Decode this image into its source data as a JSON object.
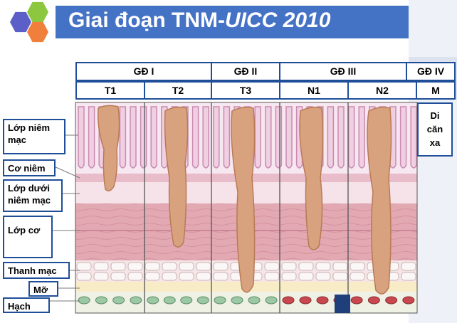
{
  "header": {
    "title_prefix": "Giai đoạn TNM-",
    "title_italic": "UICC 2010"
  },
  "stages": [
    {
      "label": "GĐ I"
    },
    {
      "label": "GĐ II"
    },
    {
      "label": "GĐ III"
    },
    {
      "label": "GĐ IV"
    }
  ],
  "columns": [
    {
      "label": "T1"
    },
    {
      "label": "T2"
    },
    {
      "label": "T3"
    },
    {
      "label": "N1"
    },
    {
      "label": "N2"
    },
    {
      "label": "M"
    }
  ],
  "layers": [
    {
      "label": "Lớp niêm mạc"
    },
    {
      "label": "Cơ niêm"
    },
    {
      "label": "Lớp dưới niêm mạc"
    },
    {
      "label": "Lớp cơ"
    },
    {
      "label": "Thanh mạc"
    },
    {
      "label": "Mỡ"
    },
    {
      "label": "Hạch"
    }
  ],
  "metastasis": {
    "line1": "Di",
    "line2": "căn",
    "line3": "xa"
  },
  "colors": {
    "header_blue": "#4472c4",
    "border_blue": "#1f4e99",
    "tumor": "#d9a27e",
    "mucosa": "#f3d9e8",
    "muscle": "#e0a3ae",
    "lymph_normal": "#9dc8a5",
    "lymph_metastatic": "#c9474f"
  }
}
